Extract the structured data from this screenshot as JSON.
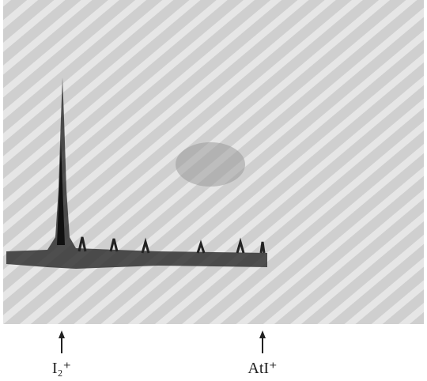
{
  "annotations": [
    "I₂⁺",
    "AtI⁺"
  ]
}
